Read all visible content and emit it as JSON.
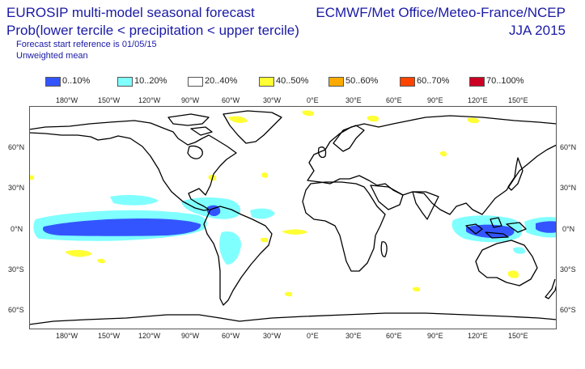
{
  "header": {
    "title_line1": "EUROSIP multi-model seasonal forecast",
    "title_line2": "Prob(lower tercile < precipitation < upper tercile)",
    "subtitle_line1": "Forecast start reference is 01/05/15",
    "subtitle_line2": "Unweighted mean",
    "centres": "ECMWF/Met Office/Meteo-France/NCEP",
    "season": "JJA 2015"
  },
  "legend": [
    {
      "label": "0..10%",
      "color": "#3355ff"
    },
    {
      "label": "10..20%",
      "color": "#80ffff"
    },
    {
      "label": "20..40%",
      "color": "#ffffff"
    },
    {
      "label": "40..50%",
      "color": "#ffff33"
    },
    {
      "label": "50..60%",
      "color": "#ffaa00"
    },
    {
      "label": "60..70%",
      "color": "#ff4400"
    },
    {
      "label": "70..100%",
      "color": "#cc0022"
    }
  ],
  "axes": {
    "lon_labels": [
      "180°W",
      "150°W",
      "120°W",
      "90°W",
      "60°W",
      "30°W",
      "0°E",
      "30°E",
      "60°E",
      "90°E",
      "120°E",
      "150°E"
    ],
    "lat_labels": [
      "60°N",
      "30°N",
      "0°N",
      "30°S",
      "60°S"
    ]
  }
}
